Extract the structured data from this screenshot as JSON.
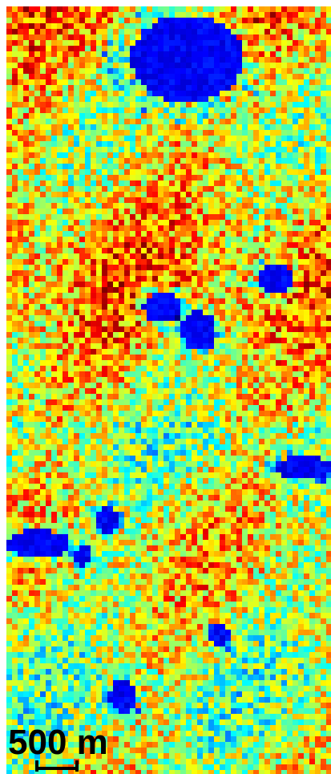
{
  "map": {
    "scale_label": "500 m"
  }
}
